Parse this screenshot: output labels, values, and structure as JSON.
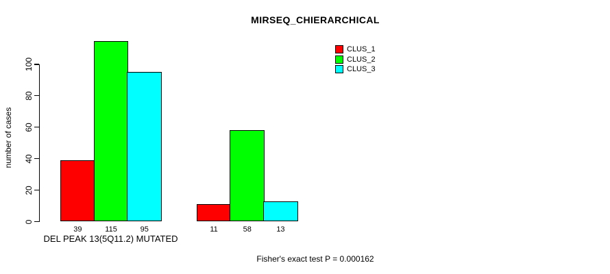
{
  "chart_data": {
    "type": "bar",
    "title": "MIRSEQ_CHIERARCHICAL",
    "ylabel": "number of cases",
    "xlabel": "",
    "yticks": [
      0,
      20,
      40,
      60,
      80,
      100
    ],
    "ylim": [
      0,
      115
    ],
    "grid": false,
    "categories": [
      "DEL PEAK 13(5Q11.2) MUTATED",
      ""
    ],
    "series": [
      {
        "name": "CLUS_1",
        "color": "#ff0000",
        "values": [
          39,
          11
        ]
      },
      {
        "name": "CLUS_2",
        "color": "#00ff00",
        "values": [
          115,
          58
        ]
      },
      {
        "name": "CLUS_3",
        "color": "#00ffff",
        "values": [
          95,
          13
        ]
      }
    ],
    "bar_value_labels": [
      [
        39,
        115,
        95
      ],
      [
        11,
        58,
        13
      ]
    ],
    "legend": {
      "position": "top-right",
      "entries": [
        "CLUS_1",
        "CLUS_2",
        "CLUS_3"
      ]
    },
    "annotation": "Fisher's exact test P = 0.000162",
    "colors": {
      "axis": "#000000",
      "text": "#000000",
      "background": "#ffffff"
    }
  }
}
